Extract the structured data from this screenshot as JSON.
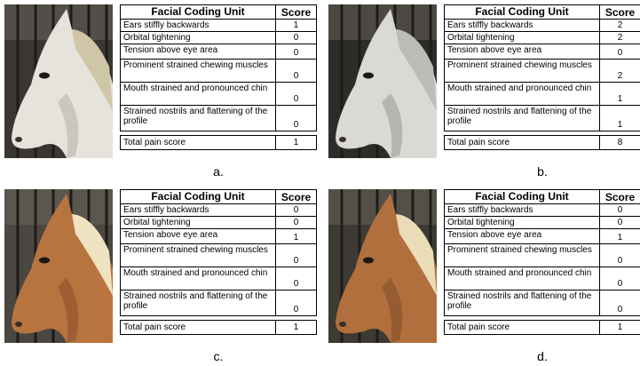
{
  "panels": [
    {
      "label": "a.",
      "table": {
        "header": [
          "Facial Coding Unit",
          "Score"
        ],
        "rows": [
          [
            "Ears stiffly backwards",
            1
          ],
          [
            "Orbital tightening",
            0
          ],
          [
            "Tension above eye area",
            0
          ],
          [
            "Prominent strained chewing muscles",
            0
          ],
          [
            "Mouth strained and pronounced chin",
            0
          ],
          [
            "Strained nostrils and flattening of the profile",
            0
          ]
        ],
        "total": [
          "Total pain score",
          1
        ]
      }
    },
    {
      "label": "b.",
      "table": {
        "header": [
          "Facial Coding Unit",
          "Score"
        ],
        "rows": [
          [
            "Ears stiffly backwards",
            2
          ],
          [
            "Orbital tightening",
            2
          ],
          [
            "Tension above eye area",
            0
          ],
          [
            "Prominent strained chewing muscles",
            2
          ],
          [
            "Mouth strained and pronounced chin",
            1
          ],
          [
            "Strained nostrils and flattening of the profile",
            1
          ]
        ],
        "total": [
          "Total pain score",
          8
        ]
      }
    },
    {
      "label": "c.",
      "table": {
        "header": [
          "Facial Coding Unit",
          "Score"
        ],
        "rows": [
          [
            "Ears stiffly backwards",
            0
          ],
          [
            "Orbital tightening",
            0
          ],
          [
            "Tension above eye area",
            1
          ],
          [
            "Prominent strained chewing muscles",
            0
          ],
          [
            "Mouth strained and pronounced chin",
            0
          ],
          [
            "Strained nostrils and flattening of the profile",
            0
          ]
        ],
        "total": [
          "Total pain score",
          1
        ]
      }
    },
    {
      "label": "d.",
      "table": {
        "header": [
          "Facial Coding Unit",
          "Score"
        ],
        "rows": [
          [
            "Ears stiffly backwards",
            0
          ],
          [
            "Orbital tightening",
            0
          ],
          [
            "Tension above eye area",
            1
          ],
          [
            "Prominent strained chewing muscles",
            0
          ],
          [
            "Mouth strained and pronounced chin",
            0
          ],
          [
            "Strained nostrils and flattening of the profile",
            0
          ]
        ],
        "total": [
          "Total pain score",
          1
        ]
      }
    }
  ]
}
